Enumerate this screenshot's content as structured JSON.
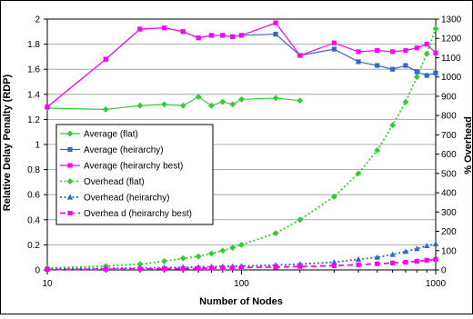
{
  "chart_data": {
    "type": "line",
    "x_scale": "log",
    "xlabel": "Number of Nodes",
    "ylabel": "Relative Delay Penalty (RDP)",
    "y2label": "% Overhead",
    "xlim": [
      10,
      1000
    ],
    "ylim": [
      0,
      2
    ],
    "y2lim": [
      0,
      1300
    ],
    "x_ticks": [
      10,
      100,
      1000
    ],
    "y_ticks": [
      0,
      0.2,
      0.4,
      0.6,
      0.8,
      1,
      1.2,
      1.4,
      1.6,
      1.8,
      2
    ],
    "y2_ticks": [
      0,
      100,
      200,
      300,
      400,
      500,
      600,
      700,
      800,
      900,
      1000,
      1100,
      1200,
      1300
    ],
    "grid": "horizontal",
    "legend_position": "left-middle",
    "series": [
      {
        "name": "Average (flat)",
        "axis": "left",
        "color": "#33cc33",
        "marker": "diamond",
        "style": "solid",
        "x": [
          10,
          20,
          30,
          40,
          50,
          60,
          70,
          80,
          90,
          100,
          150,
          200
        ],
        "y": [
          1.29,
          1.28,
          1.31,
          1.32,
          1.31,
          1.38,
          1.31,
          1.34,
          1.32,
          1.36,
          1.37,
          1.35
        ]
      },
      {
        "name": "Average (heirarchy)",
        "axis": "left",
        "color": "#3366cc",
        "marker": "square",
        "style": "solid",
        "x": [
          10,
          20,
          30,
          40,
          50,
          60,
          70,
          80,
          90,
          100,
          150,
          200,
          300,
          400,
          500,
          600,
          700,
          800,
          900,
          1000
        ],
        "y": [
          1.3,
          1.68,
          1.92,
          1.93,
          1.9,
          1.85,
          1.87,
          1.87,
          1.86,
          1.87,
          1.88,
          1.71,
          1.76,
          1.66,
          1.63,
          1.6,
          1.63,
          1.58,
          1.55,
          1.57
        ]
      },
      {
        "name": "Average (heirarchy best)",
        "axis": "left",
        "color": "#ff00ff",
        "marker": "square",
        "style": "solid",
        "x": [
          10,
          20,
          30,
          40,
          50,
          60,
          70,
          80,
          90,
          100,
          150,
          200,
          300,
          400,
          500,
          600,
          700,
          800,
          900,
          1000
        ],
        "y": [
          1.3,
          1.68,
          1.92,
          1.93,
          1.9,
          1.85,
          1.87,
          1.87,
          1.86,
          1.87,
          1.97,
          1.71,
          1.81,
          1.74,
          1.75,
          1.74,
          1.75,
          1.77,
          1.8,
          1.73
        ]
      },
      {
        "name": "Overhead (flat)",
        "axis": "right",
        "color": "#33cc33",
        "marker": "diamond",
        "style": "dotted",
        "x": [
          10,
          20,
          30,
          40,
          50,
          60,
          70,
          80,
          90,
          100,
          150,
          200,
          300,
          400,
          500,
          600,
          700,
          800,
          900,
          1000
        ],
        "y": [
          10,
          20,
          30,
          45,
          60,
          70,
          85,
          100,
          115,
          130,
          190,
          260,
          380,
          500,
          620,
          750,
          870,
          1000,
          1120,
          1250
        ]
      },
      {
        "name": "Overhead (heirarchy)",
        "axis": "right",
        "color": "#3366cc",
        "marker": "triangle",
        "style": "dotted",
        "x": [
          10,
          20,
          30,
          40,
          50,
          60,
          70,
          80,
          90,
          100,
          150,
          200,
          300,
          400,
          500,
          600,
          700,
          800,
          900,
          1000
        ],
        "y": [
          5,
          8,
          10,
          12,
          14,
          15,
          17,
          18,
          19,
          20,
          25,
          30,
          40,
          55,
          65,
          80,
          95,
          110,
          125,
          135
        ]
      },
      {
        "name": "Overhead (heirarchy best)",
        "legend_label": "Overhea d (heirarchy best)",
        "axis": "right",
        "color": "#ff00ff",
        "marker": "square",
        "style": "dashed",
        "x": [
          10,
          20,
          30,
          40,
          50,
          60,
          70,
          80,
          90,
          100,
          150,
          200,
          300,
          400,
          500,
          600,
          700,
          800,
          900,
          1000
        ],
        "y": [
          2,
          4,
          5,
          6,
          7,
          8,
          9,
          10,
          11,
          12,
          15,
          18,
          22,
          27,
          32,
          36,
          40,
          45,
          50,
          55
        ]
      }
    ]
  }
}
